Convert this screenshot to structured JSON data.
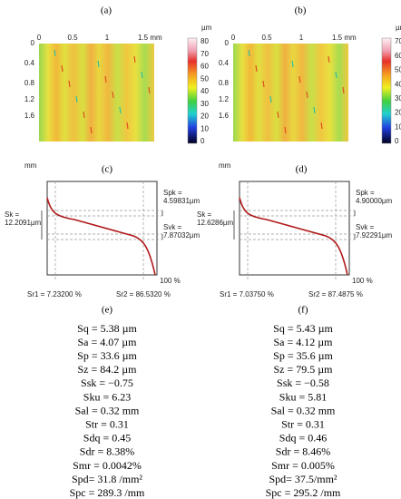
{
  "maps": [
    {
      "label": "(a)",
      "xticks": [
        "0",
        "0.5",
        "1",
        "1.5 mm"
      ],
      "yticks": [
        "0",
        "0.4",
        "0.8",
        "1.2",
        "1.6"
      ],
      "yunit": "mm",
      "colorbar_unit": "µm",
      "colorbar_ticks": [
        "80",
        "70",
        "60",
        "50",
        "40",
        "30",
        "20",
        "10",
        "0"
      ]
    },
    {
      "label": "(b)",
      "xticks": [
        "0",
        "0.5",
        "1",
        "1.5 mm"
      ],
      "yticks": [
        "0",
        "0.4",
        "0.8",
        "1.2",
        "1.6"
      ],
      "yunit": "mm",
      "colorbar_unit": "µm",
      "colorbar_ticks": [
        "70",
        "60",
        "50",
        "40",
        "30",
        "20",
        "10",
        "0"
      ]
    }
  ],
  "curves": [
    {
      "label": "(c)",
      "spk": [
        "Spk =",
        "4.59831µm"
      ],
      "sk": [
        "Sk =",
        "12.2091µm"
      ],
      "svk": [
        "Svk =",
        "7.87032µm"
      ],
      "x_end": "100 %",
      "sr1": "Sr1 = 7.23200 %",
      "sr2": "Sr2 = 86.5320 %"
    },
    {
      "label": "(d)",
      "spk": [
        "Spk =",
        "4.90000µm"
      ],
      "sk": [
        "Sk =",
        "12.6286µm"
      ],
      "svk": [
        "Svk =",
        "7.92291µm"
      ],
      "x_end": "100 %",
      "sr1": "Sr1 = 7.03750 %",
      "sr2": "Sr2 = 87.4875 %"
    }
  ],
  "params": [
    {
      "label": "(e)",
      "rows": [
        "Sq = 5.38 µm",
        "Sa = 4.07 µm",
        "Sp = 33.6 µm",
        "Sz = 84.2 µm",
        "Ssk = −0.75",
        "Sku = 6.23",
        "Sal = 0.32 mm",
        "Str = 0.31",
        "Sdq = 0.45",
        "Sdr = 8.38%",
        "Smr = 0.0042%",
        "Spd= 31.8 /mm²",
        "Spc = 289.3 /mm"
      ]
    },
    {
      "label": "(f)",
      "rows": [
        "Sq = 5.43 µm",
        "Sa = 4.12 µm",
        "Sp = 35.6 µm",
        "Sz = 79.5 µm",
        "Ssk = −0.58",
        "Sku = 5.81",
        "Sal = 0.32 mm",
        "Str = 0.31",
        "Sdq = 0.46",
        "Sdr = 8.46%",
        "Smr = 0.005%",
        "Spd= 37.5/mm²",
        "Spc = 295.2 /mm"
      ]
    }
  ]
}
